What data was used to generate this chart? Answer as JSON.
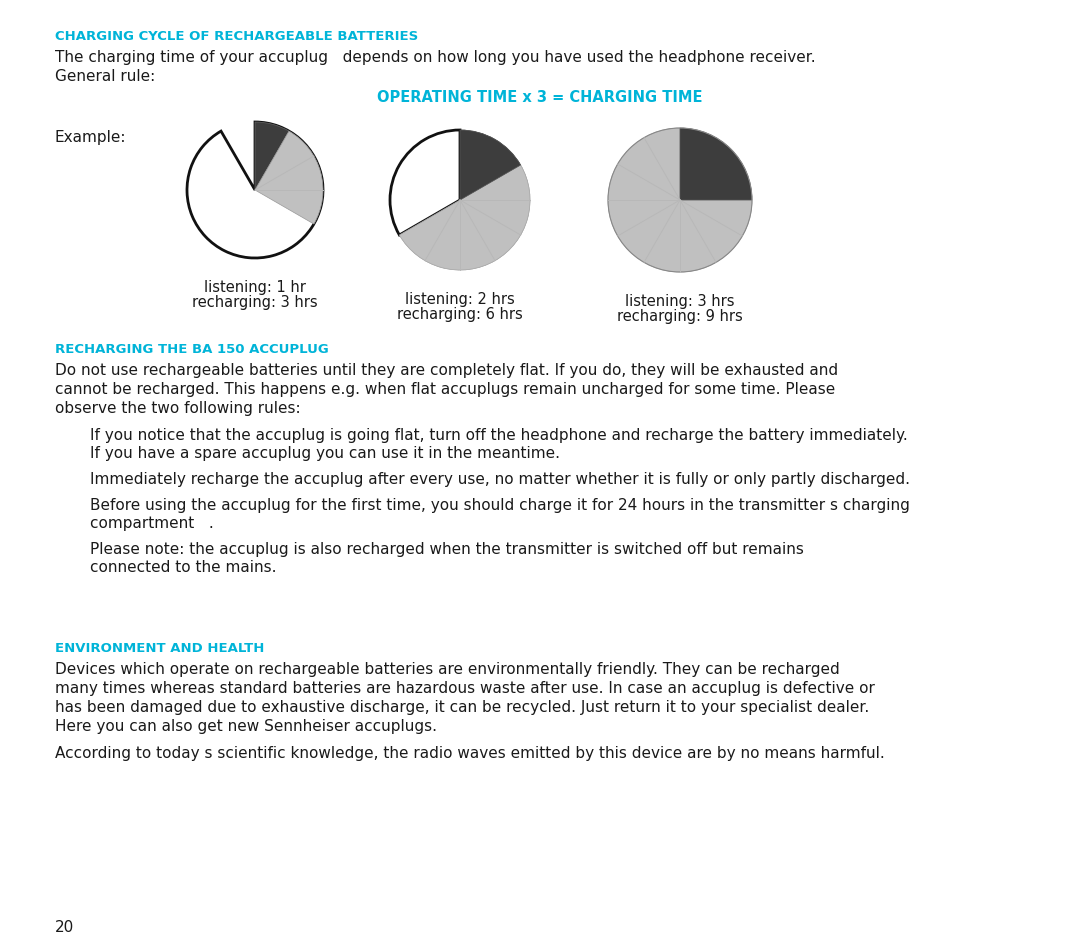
{
  "bg_color": "#ffffff",
  "cyan_color": "#00b4d8",
  "text_color": "#1a1a1a",
  "section1_title": "CHARGING CYCLE OF RECHARGEABLE BATTERIES",
  "section1_body_line1": "The charging time of your accuplug   depends on how long you have used the headphone receiver.",
  "section1_body_line2": "General rule:",
  "chart_title": "OPERATING TIME x 3 = CHARGING TIME",
  "example_label": "Example:",
  "pie1_label1": "listening: 1 hr",
  "pie1_label2": "recharging: 3 hrs",
  "pie2_label1": "listening: 2 hrs",
  "pie2_label2": "recharging: 6 hrs",
  "pie3_label1": "listening: 3 hrs",
  "pie3_label2": "recharging: 9 hrs",
  "section2_title": "RECHARGING THE BA 150 ACCUPLUG",
  "section2_body": "Do not use rechargeable batteries until they are completely flat. If you do, they will be exhausted and\ncannot be recharged. This happens e.g. when flat accuplugs remain uncharged for some time. Please\nobserve the two following rules:",
  "section2_bullets": [
    "If you notice that the accuplug is going flat, turn off the headphone and recharge the battery immediately.\nIf you have a spare accuplug you can use it in the meantime.",
    "Immediately recharge the accuplug after every use, no matter whether it is fully or only partly discharged.",
    "Before using the accuplug for the first time, you should charge it for 24 hours in the transmitter s charging\ncompartment   .",
    "Please note: the accuplug is also recharged when the transmitter is switched off but remains\nconnected to the mains."
  ],
  "section3_title": "ENVIRONMENT AND HEALTH",
  "section3_body1_lines": [
    "Devices which operate on rechargeable batteries are environmentally friendly. They can be recharged",
    "many times whereas standard batteries are hazardous waste after use. In case an accuplug is defective or",
    "has been damaged due to exhaustive discharge, it can be recycled. Just return it to your specialist dealer.",
    "Here you can also get new Sennheiser accuplugs."
  ],
  "section3_body2": "According to today s scientific knowledge, the radio waves emitted by this device are by no means harmful.",
  "page_number": "20"
}
